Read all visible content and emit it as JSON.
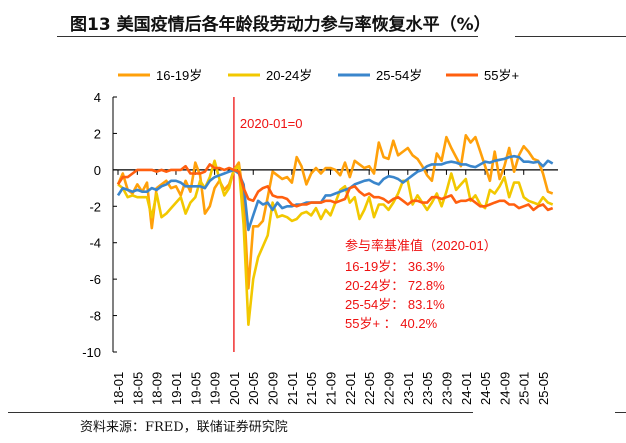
{
  "title": "图13 美国疫情后各年龄段劳动力参与率恢复水平（%）",
  "source": "资料来源：FRED，联储证券研究院",
  "chart_data": {
    "type": "line",
    "title": "图13 美国疫情后各年龄段劳动力参与率恢复水平（%）",
    "xlabel": "",
    "ylabel": "",
    "x_start": "2018-01",
    "x_frequency": "monthly",
    "x_ticks": [
      "18-01",
      "18-05",
      "18-09",
      "19-01",
      "19-05",
      "19-09",
      "20-01",
      "20-05",
      "20-09",
      "21-01",
      "21-05",
      "21-09",
      "22-01",
      "22-05",
      "22-09",
      "23-01",
      "23-05",
      "23-09",
      "24-01",
      "24-05",
      "24-09",
      "25-01",
      "25-05"
    ],
    "ylim": [
      -10,
      4
    ],
    "y_ticks": [
      "4",
      "2",
      "0",
      "-2",
      "-4",
      "-6",
      "-8",
      "-10"
    ],
    "y_tick_values": [
      4,
      2,
      0,
      -2,
      -4,
      -6,
      -8,
      -10
    ],
    "grid": false,
    "legend": "top",
    "reference_line": {
      "x": "2020-01",
      "label": "2020-01=0",
      "color": "#ee1111"
    },
    "annotation": {
      "heading": "参与率基准值（2020-01）",
      "lines": [
        "16-19岁：  36.3%",
        "20-24岁：  72.8%",
        "25-54岁：  83.1%",
        "55岁+   ：  40.2%"
      ]
    },
    "series": [
      {
        "name": "16-19岁",
        "color": "#ffa00a",
        "values": [
          -0.8,
          -0.2,
          -1.1,
          -1.3,
          -0.8,
          -1.2,
          -0.7,
          -3.2,
          -1.0,
          -0.8,
          -0.6,
          -1.0,
          -0.9,
          -1.4,
          -0.6,
          -1.2,
          0.4,
          -0.3,
          -2.4,
          -2.0,
          -1.0,
          -0.6,
          -1.1,
          -0.8,
          0,
          0.4,
          -1.5,
          -6.5,
          -3.1,
          -3.1,
          -2.8,
          -1.5,
          -0.1,
          -0.3,
          -0.5,
          -0.4,
          -0.7,
          0.7,
          0.2,
          -0.8,
          -0.2,
          0.1,
          -0.2,
          0.1,
          0.1,
          0.0,
          -0.3,
          0.4,
          -0.4,
          0.5,
          0.3,
          0.1,
          0.2,
          -0.2,
          1.5,
          0.7,
          0.6,
          1.6,
          0.8,
          1.0,
          1.2,
          0.8,
          0.6,
          0.2,
          -0.3,
          -0.6,
          0.9,
          0.5,
          1.8,
          1.2,
          0.7,
          0.2,
          1.9,
          1.5,
          1.8,
          1.0,
          0.2,
          -0.6,
          1.0,
          -0.5,
          0.2,
          1.2,
          -0.1,
          0.8,
          1.3,
          1.0,
          0.6,
          0.5,
          -0.2,
          -1.2,
          -1.3
        ]
      },
      {
        "name": "20-24岁",
        "color": "#f2c800",
        "values": [
          -0.8,
          -1.0,
          -1.5,
          -1.4,
          -1.5,
          -1.5,
          -1.5,
          -2.6,
          -1.3,
          -2.6,
          -2.4,
          -2.1,
          -1.8,
          -1.5,
          -2.4,
          -1.8,
          -1.5,
          -0.6,
          -1.0,
          -0.4,
          0.5,
          -0.5,
          -1.4,
          -1.0,
          0,
          0.2,
          -3.0,
          -8.5,
          -6.0,
          -4.8,
          -4.2,
          -3.6,
          -1.8,
          -2.6,
          -2.5,
          -2.6,
          -2.8,
          -2.7,
          -2.4,
          -2.3,
          -2.5,
          -2.1,
          -2.7,
          -2.2,
          -2.5,
          -1.8,
          -1.1,
          -0.9,
          -1.8,
          -1.5,
          -2.7,
          -2.2,
          -1.5,
          -2.6,
          -1.9,
          -1.9,
          -2.2,
          -1.8,
          -1.3,
          -0.6,
          -0.6,
          -1.9,
          -1.4,
          -1.8,
          -2.2,
          -1.8,
          -1.3,
          -2.0,
          -1.2,
          -0.2,
          -1.1,
          -0.8,
          -0.5,
          -1.7,
          -1.4,
          -1.9,
          -2.1,
          -1.1,
          -1.3,
          -0.9,
          -0.4,
          -1.5,
          -0.7,
          -0.7,
          -1.5,
          -1.7,
          -1.8,
          -1.9,
          -1.5,
          -1.8,
          -1.9
        ]
      },
      {
        "name": "25-54岁",
        "color": "#3a86cc",
        "values": [
          -1.4,
          -1.0,
          -1.1,
          -1.2,
          -1.1,
          -1.2,
          -1.2,
          -1.0,
          -1.1,
          -0.9,
          -0.8,
          -0.6,
          -0.6,
          -0.7,
          -0.9,
          -0.9,
          -0.9,
          -0.9,
          -1.0,
          -0.6,
          -0.4,
          -0.3,
          -0.2,
          -0.1,
          0,
          -0.2,
          -0.8,
          -3.3,
          -2.5,
          -1.7,
          -1.9,
          -1.8,
          -2.2,
          -1.8,
          -2.1,
          -2.0,
          -2.0,
          -1.9,
          -1.9,
          -1.8,
          -1.8,
          -1.8,
          -1.8,
          -1.4,
          -1.4,
          -1.3,
          -1.2,
          -1.1,
          -1.0,
          -0.8,
          -0.7,
          -0.6,
          -0.55,
          -0.7,
          -0.8,
          -0.5,
          -0.35,
          -0.4,
          -0.5,
          -0.7,
          -0.5,
          -0.3,
          -0.1,
          0.0,
          0.2,
          0.3,
          0.3,
          0.3,
          0.4,
          0.45,
          0.4,
          0.3,
          0.3,
          0.2,
          0.15,
          0.3,
          0.45,
          0.4,
          0.5,
          0.55,
          0.6,
          0.7,
          0.75,
          0.7,
          0.45,
          0.45,
          0.4,
          0.45,
          0.2,
          0.5,
          0.35
        ]
      },
      {
        "name": "55岁+",
        "color": "#ff5f0f",
        "values": [
          -0.8,
          -0.4,
          -0.4,
          -0.2,
          0,
          0,
          0,
          0,
          -0.1,
          0,
          -0.1,
          0,
          0,
          0,
          0.2,
          -0.2,
          -0.2,
          -0.2,
          -0.1,
          0.3,
          0.1,
          0.1,
          0,
          0.1,
          0,
          -0.1,
          -1.0,
          -1.6,
          -1.7,
          -1.2,
          -1.0,
          -0.9,
          -1.4,
          -1.5,
          -1.5,
          -1.6,
          -1.9,
          -2.0,
          -1.9,
          -1.9,
          -1.8,
          -1.8,
          -1.8,
          -1.7,
          -1.7,
          -1.8,
          -1.7,
          -1.6,
          -1.0,
          -0.9,
          -1.2,
          -1.4,
          -1.3,
          -1.5,
          -1.5,
          -1.6,
          -1.8,
          -1.6,
          -1.5,
          -1.7,
          -1.9,
          -1.7,
          -1.7,
          -1.8,
          -1.8,
          -1.5,
          -1.5,
          -1.6,
          -1.5,
          -1.4,
          -1.8,
          -1.7,
          -1.7,
          -1.6,
          -1.8,
          -2.0,
          -2.0,
          -1.9,
          -1.8,
          -1.7,
          -1.7,
          -1.9,
          -1.9,
          -2.1,
          -2.0,
          -1.9,
          -2.2,
          -2.0,
          -1.9,
          -2.2,
          -2.1
        ]
      }
    ]
  }
}
